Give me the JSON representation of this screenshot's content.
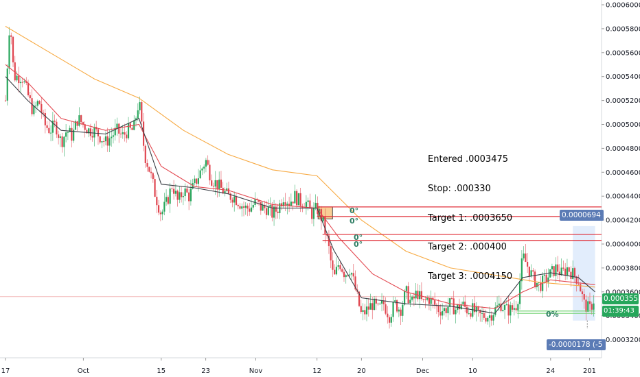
{
  "chart_data": {
    "type": "candlestick",
    "y_axis": {
      "position": "right",
      "ylim": [
        0.00031,
        0.0006
      ],
      "ticks": [
        "0.0006000",
        "0.0005800",
        "0.0005600",
        "0.0005400",
        "0.0005200",
        "0.0005000",
        "0.0004800",
        "0.0004600",
        "0.0004400",
        "0.0004200",
        "0.0004000",
        "0.0003800",
        "0.0003600",
        "0.0003400",
        "0.0003200"
      ]
    },
    "x_axis": {
      "ticks": [
        {
          "label": "17",
          "day": 0
        },
        {
          "label": "Oct",
          "day": 14
        },
        {
          "label": "15",
          "day": 28
        },
        {
          "label": "23",
          "day": 36
        },
        {
          "label": "Nov",
          "day": 45
        },
        {
          "label": "12",
          "day": 56
        },
        {
          "label": "20",
          "day": 64
        },
        {
          "label": "Dec",
          "day": 75
        },
        {
          "label": "10",
          "day": 84
        },
        {
          "label": "24",
          "day": 98
        },
        {
          "label": "201",
          "day": 105
        }
      ]
    },
    "price_path": [
      [
        0,
        0.00052
      ],
      [
        0.8,
        0.00059
      ],
      [
        1.5,
        0.00054
      ],
      [
        3,
        0.00054
      ],
      [
        4,
        0.000525
      ],
      [
        5,
        0.00051
      ],
      [
        6,
        0.00052
      ],
      [
        7,
        0.0005
      ],
      [
        8,
        0.000495
      ],
      [
        9,
        0.0005
      ],
      [
        10,
        0.000485
      ],
      [
        11,
        0.000495
      ],
      [
        12,
        0.00049
      ],
      [
        13,
        0.000505
      ],
      [
        14,
        0.0005
      ],
      [
        15,
        0.000495
      ],
      [
        16,
        0.000495
      ],
      [
        17,
        0.00049
      ],
      [
        18,
        0.000485
      ],
      [
        19,
        0.00049
      ],
      [
        20,
        0.000495
      ],
      [
        21,
        0.00049
      ],
      [
        22,
        0.000495
      ],
      [
        23,
        0.000495
      ],
      [
        24,
        0.00052
      ],
      [
        25,
        0.000475
      ],
      [
        26,
        0.00046
      ],
      [
        27,
        0.00044
      ],
      [
        28,
        0.000425
      ],
      [
        29,
        0.000435
      ],
      [
        30,
        0.00045
      ],
      [
        31,
        0.000435
      ],
      [
        32,
        0.000445
      ],
      [
        33,
        0.00044
      ],
      [
        34,
        0.00045
      ],
      [
        35,
        0.00046
      ],
      [
        36,
        0.00047
      ],
      [
        37,
        0.000455
      ],
      [
        38,
        0.00045
      ],
      [
        39,
        0.000445
      ],
      [
        40,
        0.00044
      ],
      [
        41,
        0.00044
      ],
      [
        42,
        0.000435
      ],
      [
        43,
        0.00043
      ],
      [
        44,
        0.00043
      ],
      [
        45,
        0.000435
      ],
      [
        46,
        0.00043
      ],
      [
        47,
        0.00043
      ],
      [
        48,
        0.000425
      ],
      [
        49,
        0.00043
      ],
      [
        50,
        0.00044
      ],
      [
        51,
        0.000435
      ],
      [
        52,
        0.00044
      ],
      [
        53,
        0.000435
      ],
      [
        54,
        0.000435
      ],
      [
        55,
        0.000425
      ],
      [
        56,
        0.00043
      ],
      [
        57,
        0.00042
      ],
      [
        58,
        0.0004
      ],
      [
        59,
        0.00037
      ],
      [
        60,
        0.000385
      ],
      [
        61,
        0.000375
      ],
      [
        62,
        0.00038
      ],
      [
        63,
        0.00036
      ],
      [
        64,
        0.00034
      ],
      [
        65,
        0.000345
      ],
      [
        66,
        0.00035
      ],
      [
        67,
        0.000345
      ],
      [
        68,
        0.00035
      ],
      [
        69,
        0.00034
      ],
      [
        70,
        0.00035
      ],
      [
        71,
        0.000345
      ],
      [
        72,
        0.00036
      ],
      [
        73,
        0.00035
      ],
      [
        74,
        0.00036
      ],
      [
        75,
        0.00035
      ],
      [
        76,
        0.000355
      ],
      [
        77,
        0.00035
      ],
      [
        78,
        0.000345
      ],
      [
        79,
        0.000345
      ],
      [
        80,
        0.00035
      ],
      [
        81,
        0.000345
      ],
      [
        82,
        0.00035
      ],
      [
        83,
        0.000345
      ],
      [
        84,
        0.000345
      ],
      [
        85,
        0.00034
      ],
      [
        86,
        0.00034
      ],
      [
        87,
        0.00034
      ],
      [
        88,
        0.000345
      ],
      [
        89,
        0.00035
      ],
      [
        90,
        0.000345
      ],
      [
        91,
        0.000345
      ],
      [
        92,
        0.00035
      ],
      [
        93,
        0.00039
      ],
      [
        94,
        0.00038
      ],
      [
        95,
        0.00037
      ],
      [
        96,
        0.000365
      ],
      [
        97,
        0.00037
      ],
      [
        98,
        0.000375
      ],
      [
        99,
        0.00038
      ],
      [
        100,
        0.000375
      ],
      [
        101,
        0.00038
      ],
      [
        102,
        0.000375
      ],
      [
        103,
        0.00037
      ],
      [
        104,
        0.00035
      ],
      [
        105,
        0.000345
      ],
      [
        106,
        0.000356
      ]
    ],
    "moving_averages": [
      {
        "color": "#f7a941",
        "points": [
          [
            0,
            0.000582
          ],
          [
            8,
            0.00056
          ],
          [
            16,
            0.000538
          ],
          [
            24,
            0.000522
          ],
          [
            32,
            0.000495
          ],
          [
            40,
            0.000475
          ],
          [
            48,
            0.000462
          ],
          [
            56,
            0.000457
          ],
          [
            64,
            0.00042
          ],
          [
            72,
            0.000394
          ],
          [
            80,
            0.00038
          ],
          [
            88,
            0.000374
          ],
          [
            96,
            0.000368
          ],
          [
            106,
            0.000364
          ]
        ]
      },
      {
        "color": "#e34850",
        "points": [
          [
            0,
            0.00055
          ],
          [
            4,
            0.000535
          ],
          [
            10,
            0.000505
          ],
          [
            18,
            0.000495
          ],
          [
            24,
            0.0005
          ],
          [
            28,
            0.000465
          ],
          [
            34,
            0.000448
          ],
          [
            40,
            0.000445
          ],
          [
            48,
            0.000433
          ],
          [
            56,
            0.00043
          ],
          [
            60,
            0.000405
          ],
          [
            66,
            0.000375
          ],
          [
            72,
            0.00036
          ],
          [
            80,
            0.00035
          ],
          [
            88,
            0.000346
          ],
          [
            93,
            0.00036
          ],
          [
            98,
            0.00037
          ],
          [
            106,
            0.000366
          ]
        ]
      },
      {
        "color": "#3a3f46",
        "points": [
          [
            0,
            0.00054
          ],
          [
            4,
            0.00052
          ],
          [
            10,
            0.000495
          ],
          [
            18,
            0.000492
          ],
          [
            24,
            0.000505
          ],
          [
            28,
            0.00045
          ],
          [
            34,
            0.000447
          ],
          [
            40,
            0.000442
          ],
          [
            48,
            0.00043
          ],
          [
            56,
            0.00043
          ],
          [
            59,
            0.000395
          ],
          [
            64,
            0.000355
          ],
          [
            72,
            0.00035
          ],
          [
            80,
            0.000348
          ],
          [
            88,
            0.000342
          ],
          [
            93,
            0.000372
          ],
          [
            98,
            0.000376
          ],
          [
            103,
            0.000372
          ],
          [
            106,
            0.00036
          ]
        ]
      }
    ],
    "horizontal_lines": [
      {
        "y": 0.000431,
        "x0": 56,
        "x1": 108,
        "color": "#e0303a"
      },
      {
        "y": 0.000423,
        "x0": 56,
        "x1": 108,
        "color": "#e0303a"
      },
      {
        "y": 0.000408,
        "x0": 57,
        "x1": 108,
        "color": "#e0303a"
      },
      {
        "y": 0.000403,
        "x0": 57,
        "x1": 108,
        "color": "#e0303a"
      },
      {
        "y": 0.000344,
        "x0": 92,
        "x1": 106,
        "color": "#6fd26f"
      },
      {
        "y": 0.000342,
        "x0": 92,
        "x1": 106,
        "color": "#6fd26f"
      }
    ],
    "last_price": 0.0003558,
    "annotation_lines": [
      "Entered .0003475",
      "Stop: .000330",
      "Target 1: .0003650",
      "Target 2: .000400",
      "Target 3: .0004150"
    ],
    "markers": [
      "0°",
      "0°",
      "0°",
      "0°",
      "0%"
    ],
    "range_label": "0.0000694",
    "diff_label": "-0.0000178 (-5",
    "price_label": "0.0003558",
    "time_label": "01:39:43"
  }
}
